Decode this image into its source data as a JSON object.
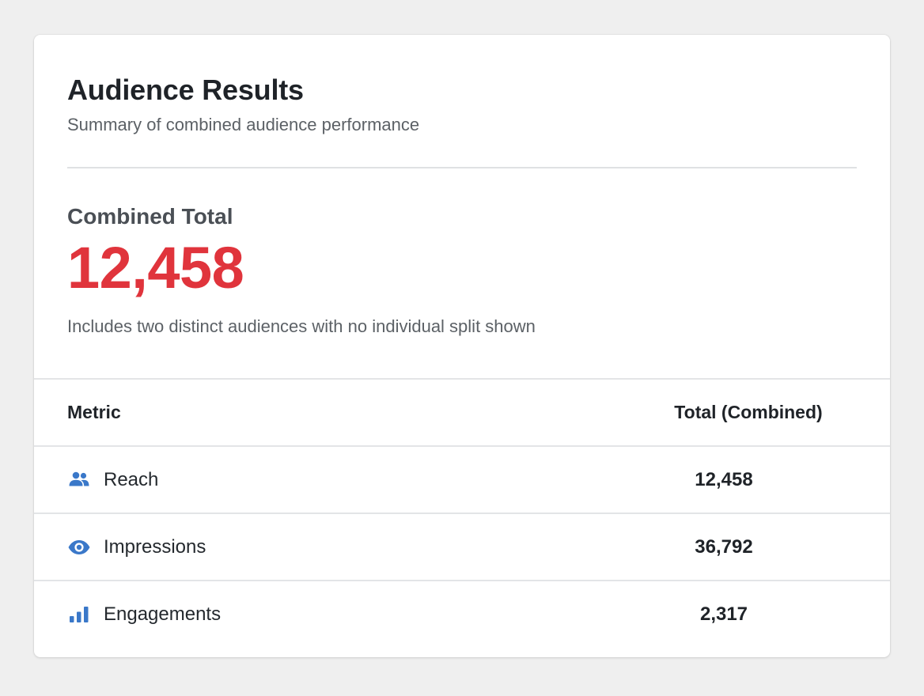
{
  "header": {
    "title": "Audience Results",
    "subtitle": "Summary of combined audience performance"
  },
  "summary": {
    "label": "Combined Total",
    "value": "12,458",
    "note": "Includes two distinct audiences with no individual split shown",
    "value_color": "#e0343c"
  },
  "table": {
    "columns": {
      "metric": "Metric",
      "total": "Total (Combined)"
    },
    "rows": [
      {
        "icon": "people-icon",
        "label": "Reach",
        "value": "12,458"
      },
      {
        "icon": "eye-icon",
        "label": "Impressions",
        "value": "36,792"
      },
      {
        "icon": "bar-chart-icon",
        "label": "Engagements",
        "value": "2,317"
      }
    ],
    "icon_color": "#3a78c9"
  }
}
